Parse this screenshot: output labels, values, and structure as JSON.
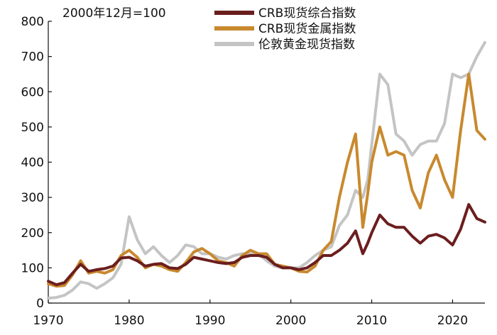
{
  "chart_data": {
    "type": "line",
    "note": "2000年12月=100",
    "title": "",
    "xlabel": "",
    "ylabel": "",
    "xlim": [
      1970,
      2024
    ],
    "ylim": [
      0,
      800
    ],
    "x_ticks": [
      1970,
      1980,
      1990,
      2000,
      2010,
      2020
    ],
    "y_ticks": [
      0,
      100,
      200,
      300,
      400,
      500,
      600,
      700,
      800
    ],
    "grid": false,
    "legend_position": "top-center",
    "series": [
      {
        "name": "CRB现货综合指数",
        "color": "#6b1e1e",
        "points": [
          [
            1970,
            62
          ],
          [
            1971,
            52
          ],
          [
            1972,
            58
          ],
          [
            1973,
            85
          ],
          [
            1974,
            110
          ],
          [
            1975,
            90
          ],
          [
            1976,
            95
          ],
          [
            1977,
            98
          ],
          [
            1978,
            105
          ],
          [
            1979,
            128
          ],
          [
            1980,
            130
          ],
          [
            1981,
            120
          ],
          [
            1982,
            105
          ],
          [
            1983,
            110
          ],
          [
            1984,
            112
          ],
          [
            1985,
            100
          ],
          [
            1986,
            98
          ],
          [
            1987,
            110
          ],
          [
            1988,
            130
          ],
          [
            1989,
            125
          ],
          [
            1990,
            120
          ],
          [
            1991,
            115
          ],
          [
            1992,
            112
          ],
          [
            1993,
            115
          ],
          [
            1994,
            130
          ],
          [
            1995,
            135
          ],
          [
            1996,
            135
          ],
          [
            1997,
            130
          ],
          [
            1998,
            110
          ],
          [
            1999,
            100
          ],
          [
            2000,
            100
          ],
          [
            2001,
            95
          ],
          [
            2002,
            100
          ],
          [
            2003,
            115
          ],
          [
            2004,
            135
          ],
          [
            2005,
            135
          ],
          [
            2006,
            150
          ],
          [
            2007,
            170
          ],
          [
            2008,
            205
          ],
          [
            2008.9,
            140
          ],
          [
            2009.5,
            170
          ],
          [
            2010,
            200
          ],
          [
            2011,
            250
          ],
          [
            2012,
            225
          ],
          [
            2013,
            215
          ],
          [
            2014,
            215
          ],
          [
            2015,
            190
          ],
          [
            2016,
            170
          ],
          [
            2017,
            190
          ],
          [
            2018,
            195
          ],
          [
            2019,
            185
          ],
          [
            2020,
            165
          ],
          [
            2021,
            210
          ],
          [
            2022,
            280
          ],
          [
            2023,
            240
          ],
          [
            2024,
            230
          ]
        ]
      },
      {
        "name": "CRB现货金属指数",
        "color": "#c8892e",
        "points": [
          [
            1970,
            55
          ],
          [
            1971,
            48
          ],
          [
            1972,
            50
          ],
          [
            1973,
            80
          ],
          [
            1974,
            120
          ],
          [
            1975,
            85
          ],
          [
            1976,
            90
          ],
          [
            1977,
            85
          ],
          [
            1978,
            95
          ],
          [
            1979,
            135
          ],
          [
            1980,
            150
          ],
          [
            1981,
            130
          ],
          [
            1982,
            100
          ],
          [
            1983,
            110
          ],
          [
            1984,
            105
          ],
          [
            1985,
            95
          ],
          [
            1986,
            90
          ],
          [
            1987,
            115
          ],
          [
            1988,
            145
          ],
          [
            1989,
            155
          ],
          [
            1990,
            140
          ],
          [
            1991,
            120
          ],
          [
            1992,
            115
          ],
          [
            1993,
            105
          ],
          [
            1994,
            135
          ],
          [
            1995,
            150
          ],
          [
            1996,
            140
          ],
          [
            1997,
            140
          ],
          [
            1998,
            110
          ],
          [
            1999,
            105
          ],
          [
            2000,
            100
          ],
          [
            2001,
            90
          ],
          [
            2002,
            88
          ],
          [
            2003,
            105
          ],
          [
            2004,
            150
          ],
          [
            2005,
            175
          ],
          [
            2006,
            300
          ],
          [
            2007,
            400
          ],
          [
            2008,
            480
          ],
          [
            2008.9,
            215
          ],
          [
            2009.5,
            310
          ],
          [
            2010,
            400
          ],
          [
            2011,
            500
          ],
          [
            2012,
            420
          ],
          [
            2013,
            430
          ],
          [
            2014,
            420
          ],
          [
            2015,
            320
          ],
          [
            2016,
            270
          ],
          [
            2017,
            370
          ],
          [
            2018,
            420
          ],
          [
            2019,
            350
          ],
          [
            2020,
            300
          ],
          [
            2021,
            490
          ],
          [
            2022,
            650
          ],
          [
            2023,
            490
          ],
          [
            2024,
            465
          ]
        ]
      },
      {
        "name": "伦敦黄金现货指数",
        "color": "#c4c4c4",
        "points": [
          [
            1970,
            14
          ],
          [
            1971,
            16
          ],
          [
            1972,
            22
          ],
          [
            1973,
            37
          ],
          [
            1974,
            60
          ],
          [
            1975,
            55
          ],
          [
            1976,
            42
          ],
          [
            1977,
            55
          ],
          [
            1978,
            72
          ],
          [
            1979,
            110
          ],
          [
            1980,
            245
          ],
          [
            1981,
            180
          ],
          [
            1982,
            140
          ],
          [
            1983,
            160
          ],
          [
            1984,
            135
          ],
          [
            1985,
            115
          ],
          [
            1986,
            135
          ],
          [
            1987,
            165
          ],
          [
            1988,
            160
          ],
          [
            1989,
            140
          ],
          [
            1990,
            140
          ],
          [
            1991,
            130
          ],
          [
            1992,
            125
          ],
          [
            1993,
            135
          ],
          [
            1994,
            140
          ],
          [
            1995,
            140
          ],
          [
            1996,
            140
          ],
          [
            1997,
            120
          ],
          [
            1998,
            105
          ],
          [
            1999,
            100
          ],
          [
            2000,
            100
          ],
          [
            2001,
            100
          ],
          [
            2002,
            115
          ],
          [
            2003,
            135
          ],
          [
            2004,
            150
          ],
          [
            2005,
            160
          ],
          [
            2006,
            220
          ],
          [
            2007,
            250
          ],
          [
            2008,
            320
          ],
          [
            2008.9,
            300
          ],
          [
            2009.5,
            350
          ],
          [
            2010,
            450
          ],
          [
            2011,
            650
          ],
          [
            2012,
            620
          ],
          [
            2013,
            480
          ],
          [
            2014,
            460
          ],
          [
            2015,
            420
          ],
          [
            2016,
            450
          ],
          [
            2017,
            460
          ],
          [
            2018,
            460
          ],
          [
            2019,
            510
          ],
          [
            2020,
            650
          ],
          [
            2021,
            640
          ],
          [
            2022,
            650
          ],
          [
            2023,
            700
          ],
          [
            2024,
            740
          ]
        ]
      }
    ]
  }
}
